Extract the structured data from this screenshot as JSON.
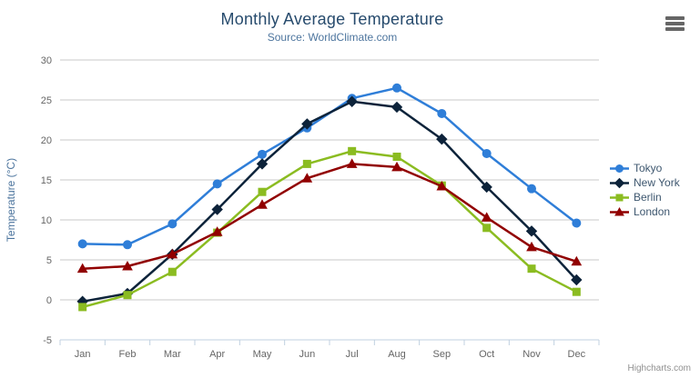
{
  "chart_data": {
    "type": "line",
    "title": "Monthly Average Temperature",
    "subtitle": "Source: WorldClimate.com",
    "categories": [
      "Jan",
      "Feb",
      "Mar",
      "Apr",
      "May",
      "Jun",
      "Jul",
      "Aug",
      "Sep",
      "Oct",
      "Nov",
      "Dec"
    ],
    "xlabel": "",
    "ylabel": "Temperature (°C)",
    "ylim": [
      -5,
      30
    ],
    "ytick_step": 5,
    "grid": true,
    "legend_position": "right",
    "series": [
      {
        "name": "Tokyo",
        "marker": "circle",
        "color": "#2f7ed8",
        "values": [
          7.0,
          6.9,
          9.5,
          14.5,
          18.2,
          21.5,
          25.2,
          26.5,
          23.3,
          18.3,
          13.9,
          9.6
        ]
      },
      {
        "name": "New York",
        "marker": "diamond",
        "color": "#0d233a",
        "values": [
          -0.2,
          0.8,
          5.7,
          11.3,
          17.0,
          22.0,
          24.8,
          24.1,
          20.1,
          14.1,
          8.6,
          2.5
        ]
      },
      {
        "name": "Berlin",
        "marker": "square",
        "color": "#8bbc21",
        "values": [
          -0.9,
          0.6,
          3.5,
          8.4,
          13.5,
          17.0,
          18.6,
          17.9,
          14.3,
          9.0,
          3.9,
          1.0
        ]
      },
      {
        "name": "London",
        "marker": "triangle",
        "color": "#910000",
        "values": [
          3.9,
          4.2,
          5.7,
          8.5,
          11.9,
          15.2,
          17.0,
          16.6,
          14.2,
          10.3,
          6.6,
          4.8
        ]
      }
    ]
  },
  "credits": "Highcharts.com",
  "export_menu": {
    "icon": "hamburger-icon"
  },
  "colors": {
    "title": "#274b6d",
    "subtitle": "#4d759e",
    "axis_title": "#4d759e",
    "axis_labels": "#666666",
    "grid_line": "#c8c8c8",
    "axis_line": "#c0d0e0",
    "legend_text": "#3e576f",
    "credits_text": "#909090",
    "menu_icon": "#666666",
    "background": "#ffffff"
  }
}
